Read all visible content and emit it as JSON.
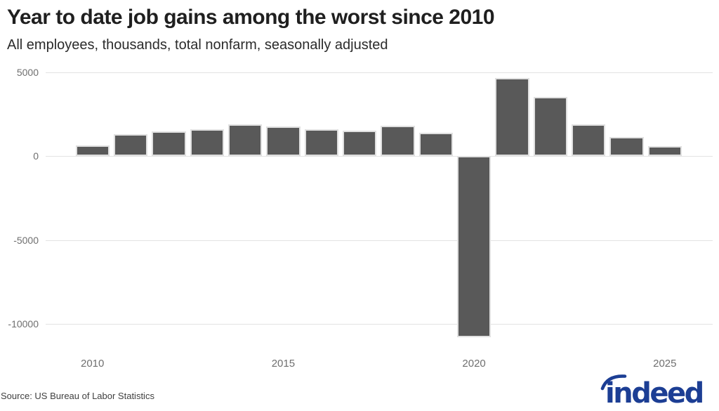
{
  "header": {
    "title": "Year to date job gains among the worst since 2010",
    "subtitle": "All employees, thousands, total nonfarm, seasonally adjusted"
  },
  "chart_data": {
    "type": "bar",
    "title": "Year to date job gains among the worst since 2010",
    "subtitle": "All employees, thousands, total nonfarm, seasonally adjusted",
    "categories": [
      "2010",
      "2011",
      "2012",
      "2013",
      "2014",
      "2015",
      "2016",
      "2017",
      "2018",
      "2019",
      "2020",
      "2021",
      "2022",
      "2023",
      "2024",
      "2025"
    ],
    "values": [
      620,
      1300,
      1450,
      1600,
      1900,
      1750,
      1600,
      1500,
      1800,
      1400,
      -10800,
      4650,
      3500,
      1900,
      1150,
      600
    ],
    "xlabel": "",
    "ylabel": "",
    "ylim": [
      -11500,
      5000
    ],
    "yticks": [
      5000,
      0,
      -5000,
      -10000
    ],
    "xticks": [
      "2010",
      "2015",
      "2020",
      "2025"
    ],
    "grid": true,
    "legend": false,
    "bar_color": "#595959",
    "gridline_color": "#e3e3e3"
  },
  "footer": {
    "source": "Source: US Bureau of Labor Statistics",
    "logo_text": "indeed",
    "logo_color": "#1c3e94"
  }
}
